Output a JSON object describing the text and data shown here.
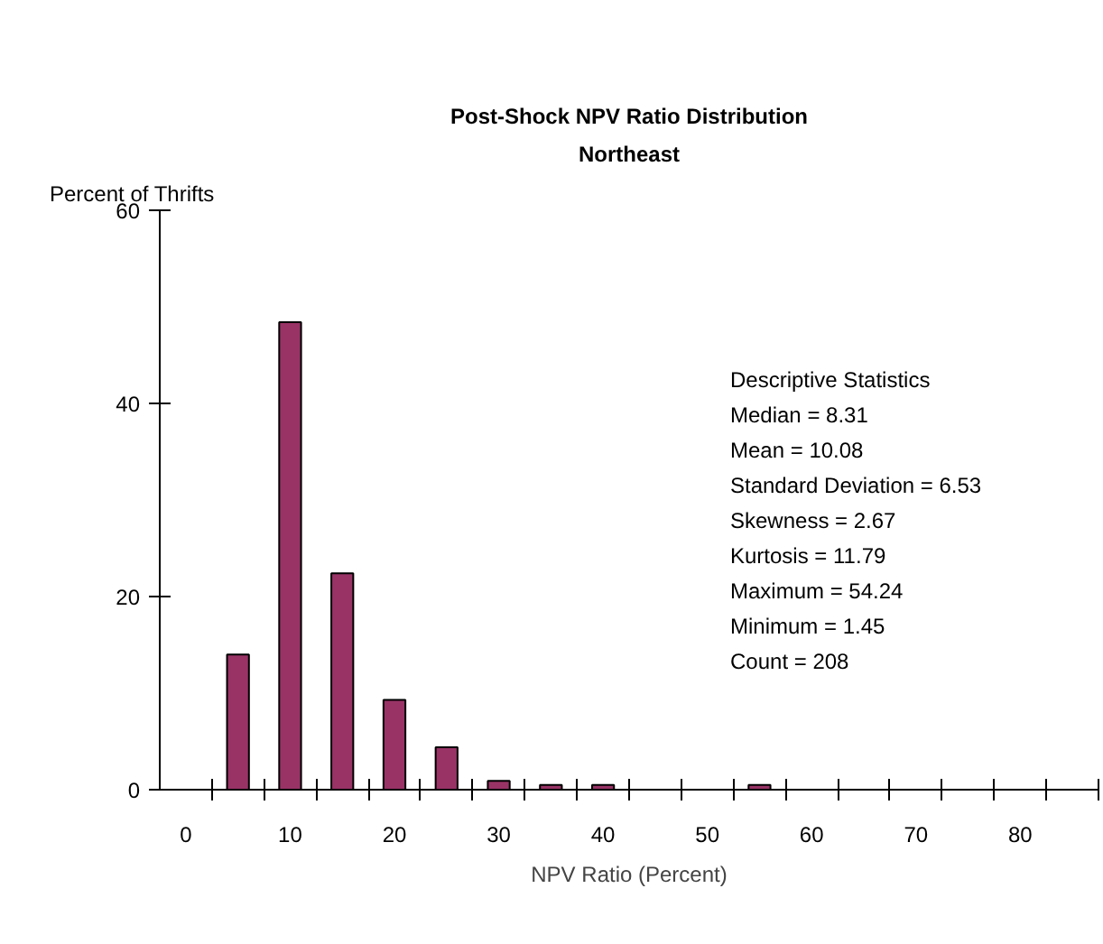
{
  "chart_data": {
    "type": "bar",
    "title": "Post-Shock NPV Ratio Distribution",
    "subtitle": "Northeast",
    "xlabel": "NPV Ratio (Percent)",
    "ylabel": "Percent of Thrifts",
    "x": [
      5,
      10,
      15,
      20,
      25,
      30,
      35,
      40,
      55
    ],
    "values": [
      14.0,
      48.4,
      22.4,
      9.3,
      4.4,
      0.9,
      0.5,
      0.5,
      0.5
    ],
    "color": "#993366",
    "xlim": [
      -2.5,
      87.5
    ],
    "ylim": [
      0,
      60
    ],
    "xticks": [
      0,
      10,
      20,
      30,
      40,
      50,
      60,
      70,
      80,
      {
        "value": 2.5,
        "label": null
      },
      {
        "value": 7.5,
        "label": null
      },
      {
        "value": 12.5,
        "label": null
      },
      {
        "value": 17.5,
        "label": null
      },
      {
        "value": 22.5,
        "label": null
      },
      {
        "value": 27.5,
        "label": null
      },
      {
        "value": 32.5,
        "label": null
      },
      {
        "value": 37.5,
        "label": null
      },
      {
        "value": 42.5,
        "label": null
      },
      {
        "value": 47.5,
        "label": null
      },
      {
        "value": 52.5,
        "label": null
      },
      {
        "value": 57.5,
        "label": null
      },
      {
        "value": 62.5,
        "label": null
      },
      {
        "value": 67.5,
        "label": null
      },
      {
        "value": 72.5,
        "label": null
      },
      {
        "value": 77.5,
        "label": null
      },
      {
        "value": 82.5,
        "label": null
      },
      {
        "value": 87.5,
        "label": null
      }
    ],
    "yticks": [
      0,
      20,
      40,
      60
    ],
    "grid": false,
    "annotations": [
      "Descriptive Statistics",
      "Median  = 8.31",
      "Mean = 10.08",
      "Standard Deviation = 6.53",
      "Skewness = 2.67",
      "Kurtosis = 11.79",
      "Maximum = 54.24",
      "Minimum = 1.45",
      "Count = 208"
    ]
  }
}
